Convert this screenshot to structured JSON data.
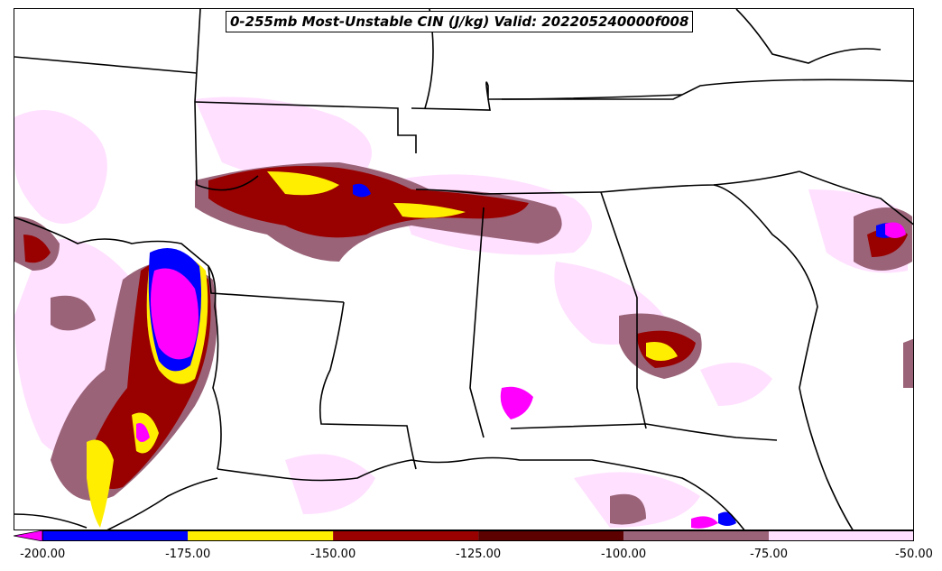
{
  "title": "0-255mb Most-Unstable CIN (J/kg) Valid: 202205240000f008",
  "colorbar": {
    "min": -205,
    "max": -50,
    "extend": "min",
    "bins": [
      {
        "from": -200,
        "to": -175,
        "color": "#0000ff"
      },
      {
        "from": -175,
        "to": -150,
        "color": "#ffee00"
      },
      {
        "from": -150,
        "to": -125,
        "color": "#990000"
      },
      {
        "from": -125,
        "to": -100,
        "color": "#5c0000"
      },
      {
        "from": -100,
        "to": -75,
        "color": "#9a6378"
      },
      {
        "from": -75,
        "to": -50,
        "color": "#ffe0ff"
      }
    ],
    "extend_color": "#ff00ff",
    "ticks": [
      {
        "value": -200,
        "label": "-200.00"
      },
      {
        "value": -175,
        "label": "-175.00"
      },
      {
        "value": -150,
        "label": "-150.00"
      },
      {
        "value": -125,
        "label": "-125.00"
      },
      {
        "value": -100,
        "label": "-100.00"
      },
      {
        "value": -75,
        "label": "-75.00"
      },
      {
        "value": -50,
        "label": "-50.00"
      }
    ]
  }
}
